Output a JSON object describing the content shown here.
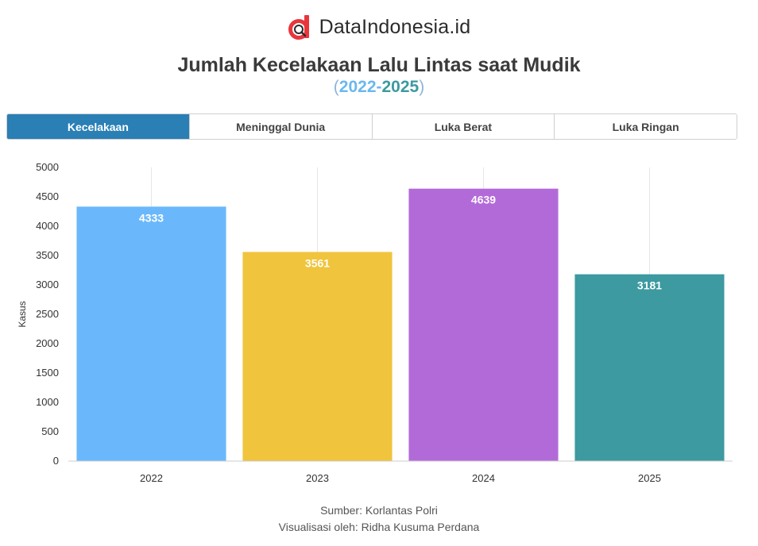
{
  "brand": {
    "name": "DataIndonesia.id",
    "logo_icon": "dataindonesia-logo-icon",
    "logo_color": "#e8363d"
  },
  "header": {
    "title": "Jumlah Kecelakaan Lalu Lintas saat Mudik",
    "subtitle_open": "(",
    "subtitle_year_start": "2022",
    "subtitle_dash": "-",
    "subtitle_year_end": "2025",
    "subtitle_close": ")"
  },
  "tabs": [
    {
      "label": "Kecelakaan",
      "active": true
    },
    {
      "label": "Meninggal Dunia",
      "active": false
    },
    {
      "label": "Luka Berat",
      "active": false
    },
    {
      "label": "Luka Ringan",
      "active": false
    }
  ],
  "chart_data": {
    "type": "bar",
    "categories": [
      "2022",
      "2023",
      "2024",
      "2025"
    ],
    "values": [
      4333,
      3561,
      4639,
      3181
    ],
    "colors": [
      "#6ab8fb",
      "#f0c43c",
      "#b36ad9",
      "#3c9aa0"
    ],
    "ylabel": "Kasus",
    "xlabel": "",
    "ylim": [
      0,
      5000
    ],
    "yticks": [
      0,
      500,
      1000,
      1500,
      2000,
      2500,
      3000,
      3500,
      4000,
      4500,
      5000
    ],
    "data_labels": true,
    "grid": "vertical",
    "legend": "none"
  },
  "footer": {
    "source": "Sumber: Korlantas Polri",
    "credit": "Visualisasi oleh: Ridha Kusuma Perdana"
  }
}
